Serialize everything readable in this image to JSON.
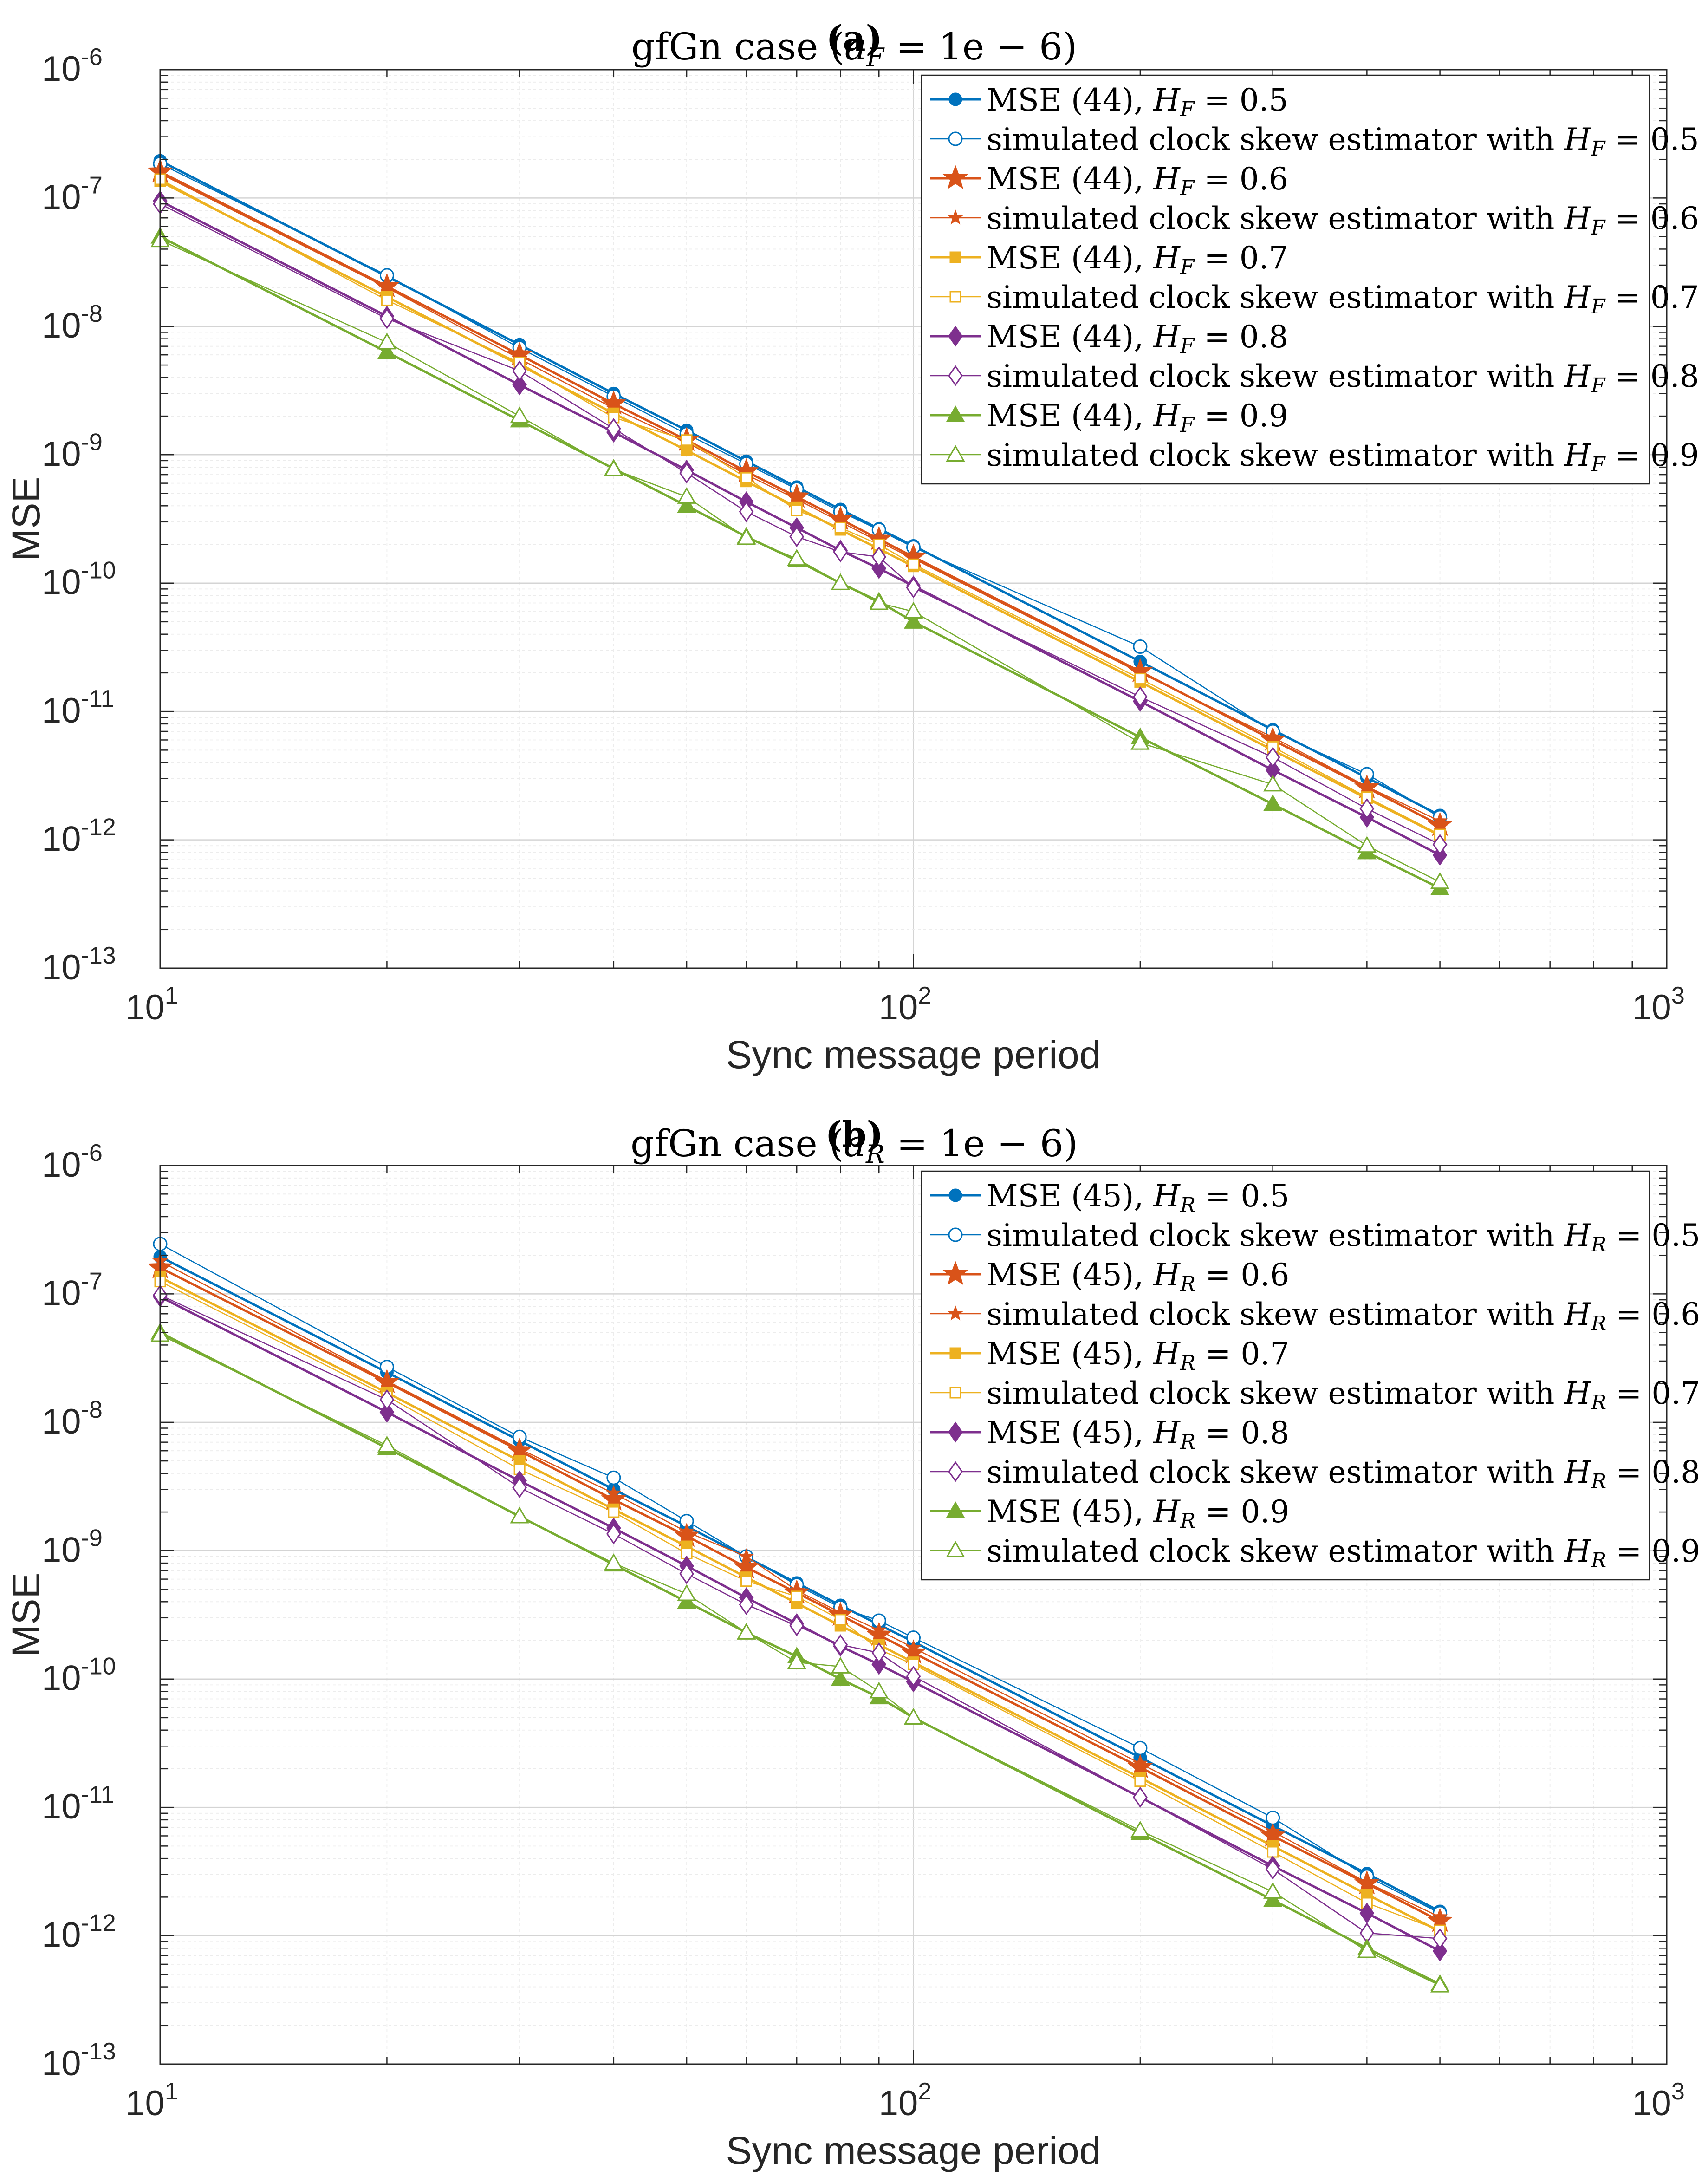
{
  "chart_data": [
    {
      "type": "line",
      "panel_label": "(a)",
      "title": {
        "prefix": "gfGn case (",
        "var": "a",
        "sub": "F",
        "suffix": " = 1e − 6)"
      },
      "xlabel": "Sync message period",
      "ylabel": "MSE",
      "xscale": "log",
      "yscale": "log",
      "xlim": [
        10,
        1000
      ],
      "ylim": [
        1e-13,
        1e-06
      ],
      "xticks": [
        {
          "base": "10",
          "exp": "1"
        },
        {
          "base": "10",
          "exp": "2"
        },
        {
          "base": "10",
          "exp": "3"
        }
      ],
      "yticks": [
        {
          "base": "10",
          "exp": "-13"
        },
        {
          "base": "10",
          "exp": "-12"
        },
        {
          "base": "10",
          "exp": "-11"
        },
        {
          "base": "10",
          "exp": "-10"
        },
        {
          "base": "10",
          "exp": "-9"
        },
        {
          "base": "10",
          "exp": "-8"
        },
        {
          "base": "10",
          "exp": "-7"
        },
        {
          "base": "10",
          "exp": "-6"
        }
      ],
      "grid": true,
      "legend_position": "top-right",
      "x": [
        10,
        20,
        30,
        40,
        50,
        60,
        70,
        80,
        90,
        100,
        200,
        300,
        400,
        500
      ],
      "series": [
        {
          "name_prefix": "MSE (44), ",
          "var": "H",
          "sub": "F",
          "value": " = 0.5",
          "color": "#0072BD",
          "marker": "circle-filled",
          "width": 5,
          "values": [
            1.95e-07,
            2.45e-08,
            7.2e-09,
            3e-09,
            1.55e-09,
            8.9e-10,
            5.6e-10,
            3.75e-10,
            2.65e-10,
            1.95e-10,
            2.45e-11,
            7.2e-12,
            3.05e-12,
            1.55e-12
          ]
        },
        {
          "name_prefix": "simulated clock skew estimator with ",
          "var": "H",
          "sub": "F",
          "value": " = 0.5",
          "color": "#0072BD",
          "marker": "circle-open",
          "width": 2.5,
          "values": [
            1.85e-07,
            2.5e-08,
            6.8e-09,
            2.85e-09,
            1.45e-09,
            8.5e-10,
            5.4e-10,
            3.6e-10,
            2.6e-10,
            1.9e-10,
            3.2e-11,
            7e-12,
            3.25e-12,
            1.5e-12
          ]
        },
        {
          "name_prefix": "MSE (44), ",
          "var": "H",
          "sub": "F",
          "value": " = 0.6",
          "color": "#D95319",
          "marker": "star-large",
          "width": 5,
          "values": [
            1.6e-07,
            2.05e-08,
            6e-09,
            2.5e-09,
            1.3e-09,
            7.4e-10,
            4.7e-10,
            3.15e-10,
            2.2e-10,
            1.6e-10,
            2.05e-11,
            6e-12,
            2.55e-12,
            1.3e-12
          ]
        },
        {
          "name_prefix": "simulated clock skew estimator with ",
          "var": "H",
          "sub": "F",
          "value": " = 0.6",
          "color": "#D95319",
          "marker": "star-small",
          "width": 2.5,
          "values": [
            1.55e-07,
            2e-08,
            5.6e-09,
            2.3e-09,
            1.25e-09,
            7e-10,
            4.5e-10,
            3e-10,
            2.1e-10,
            1.55e-10,
            2e-11,
            6.3e-12,
            2.6e-12,
            1.4e-12
          ]
        },
        {
          "name_prefix": "MSE (44), ",
          "var": "H",
          "sub": "F",
          "value": " = 0.7",
          "color": "#EDB120",
          "marker": "square-filled",
          "width": 5,
          "values": [
            1.35e-07,
            1.7e-08,
            5e-09,
            2.1e-09,
            1.08e-09,
            6.2e-10,
            3.9e-10,
            2.6e-10,
            1.85e-10,
            1.35e-10,
            1.7e-11,
            5e-12,
            2.1e-12,
            1.08e-12
          ]
        },
        {
          "name_prefix": "simulated clock skew estimator with ",
          "var": "H",
          "sub": "F",
          "value": " = 0.7",
          "color": "#EDB120",
          "marker": "square-open",
          "width": 2.5,
          "values": [
            1.4e-07,
            1.6e-08,
            5.2e-09,
            1.95e-09,
            1.3e-09,
            6.6e-10,
            3.7e-10,
            2.7e-10,
            2e-10,
            1.4e-10,
            1.8e-11,
            5.3e-12,
            2.15e-12,
            1.1e-12
          ]
        },
        {
          "name_prefix": "MSE (44), ",
          "var": "H",
          "sub": "F",
          "value": " = 0.8",
          "color": "#7E2F8E",
          "marker": "diamond-filled",
          "width": 5,
          "values": [
            9.5e-08,
            1.2e-08,
            3.5e-09,
            1.5e-09,
            7.6e-10,
            4.3e-10,
            2.7e-10,
            1.8e-10,
            1.3e-10,
            9.5e-11,
            1.2e-11,
            3.5e-12,
            1.5e-12,
            7.6e-13
          ]
        },
        {
          "name_prefix": "simulated clock skew estimator with ",
          "var": "H",
          "sub": "F",
          "value": " = 0.8",
          "color": "#7E2F8E",
          "marker": "diamond-open",
          "width": 2.5,
          "values": [
            9e-08,
            1.15e-08,
            4.5e-09,
            1.6e-09,
            7.2e-10,
            3.6e-10,
            2.3e-10,
            1.75e-10,
            1.6e-10,
            9.2e-11,
            1.3e-11,
            4.4e-12,
            1.75e-12,
            9.2e-13
          ]
        },
        {
          "name_prefix": "MSE (44), ",
          "var": "H",
          "sub": "F",
          "value": " = 0.9",
          "color": "#77AC30",
          "marker": "triangle-filled",
          "width": 5,
          "values": [
            5e-08,
            6.3e-09,
            1.85e-09,
            7.8e-10,
            4e-10,
            2.3e-10,
            1.5e-10,
            1e-10,
            7.2e-11,
            5e-11,
            6.3e-12,
            1.9e-12,
            8e-13,
            4.2e-13
          ]
        },
        {
          "name_prefix": "simulated clock skew estimator with ",
          "var": "H",
          "sub": "F",
          "value": " = 0.9",
          "color": "#77AC30",
          "marker": "triangle-open",
          "width": 2.5,
          "values": [
            4.7e-08,
            7.5e-09,
            2e-09,
            7.7e-10,
            4.7e-10,
            2.25e-10,
            1.55e-10,
            1e-10,
            7e-11,
            6e-11,
            5.7e-12,
            2.7e-12,
            9e-13,
            4.7e-13
          ]
        }
      ]
    },
    {
      "type": "line",
      "panel_label": "(b)",
      "title": {
        "prefix": "gfGn case (",
        "var": "a",
        "sub": "R",
        "suffix": " = 1e − 6)"
      },
      "xlabel": "Sync message period",
      "ylabel": "MSE",
      "xscale": "log",
      "yscale": "log",
      "xlim": [
        10,
        1000
      ],
      "ylim": [
        1e-13,
        1e-06
      ],
      "xticks": [
        {
          "base": "10",
          "exp": "1"
        },
        {
          "base": "10",
          "exp": "2"
        },
        {
          "base": "10",
          "exp": "3"
        }
      ],
      "yticks": [
        {
          "base": "10",
          "exp": "-13"
        },
        {
          "base": "10",
          "exp": "-12"
        },
        {
          "base": "10",
          "exp": "-11"
        },
        {
          "base": "10",
          "exp": "-10"
        },
        {
          "base": "10",
          "exp": "-9"
        },
        {
          "base": "10",
          "exp": "-8"
        },
        {
          "base": "10",
          "exp": "-7"
        },
        {
          "base": "10",
          "exp": "-6"
        }
      ],
      "grid": true,
      "legend_position": "top-right",
      "x": [
        10,
        20,
        30,
        40,
        50,
        60,
        70,
        80,
        90,
        100,
        200,
        300,
        400,
        500
      ],
      "series": [
        {
          "name_prefix": "MSE (45), ",
          "var": "H",
          "sub": "R",
          "value": " = 0.5",
          "color": "#0072BD",
          "marker": "circle-filled",
          "width": 5,
          "values": [
            1.95e-07,
            2.45e-08,
            7.2e-09,
            3e-09,
            1.55e-09,
            8.9e-10,
            5.6e-10,
            3.75e-10,
            2.65e-10,
            1.95e-10,
            2.45e-11,
            7.2e-12,
            3.05e-12,
            1.55e-12
          ]
        },
        {
          "name_prefix": "simulated clock skew estimator with ",
          "var": "H",
          "sub": "R",
          "value": " = 0.5",
          "color": "#0072BD",
          "marker": "circle-open",
          "width": 2.5,
          "values": [
            2.45e-07,
            2.7e-08,
            7.7e-09,
            3.7e-09,
            1.7e-09,
            9e-10,
            5.4e-10,
            3.6e-10,
            2.85e-10,
            2.1e-10,
            2.9e-11,
            8.3e-12,
            2.9e-12,
            1.5e-12
          ]
        },
        {
          "name_prefix": "MSE (45), ",
          "var": "H",
          "sub": "R",
          "value": " = 0.6",
          "color": "#D95319",
          "marker": "star-large",
          "width": 5,
          "values": [
            1.6e-07,
            2.05e-08,
            6e-09,
            2.5e-09,
            1.3e-09,
            7.4e-10,
            4.7e-10,
            3.15e-10,
            2.2e-10,
            1.6e-10,
            2.05e-11,
            6e-12,
            2.55e-12,
            1.3e-12
          ]
        },
        {
          "name_prefix": "simulated clock skew estimator with ",
          "var": "H",
          "sub": "R",
          "value": " = 0.6",
          "color": "#D95319",
          "marker": "star-small",
          "width": 2.5,
          "values": [
            1.8e-07,
            2.1e-08,
            6.2e-09,
            2.8e-09,
            1.4e-09,
            9e-10,
            4.9e-10,
            3.3e-10,
            2.4e-10,
            1.75e-10,
            2.2e-11,
            6.5e-12,
            2.6e-12,
            1.4e-12
          ]
        },
        {
          "name_prefix": "MSE (45), ",
          "var": "H",
          "sub": "R",
          "value": " = 0.7",
          "color": "#EDB120",
          "marker": "square-filled",
          "width": 5,
          "values": [
            1.35e-07,
            1.7e-08,
            5e-09,
            2.1e-09,
            1.08e-09,
            6.2e-10,
            3.9e-10,
            2.6e-10,
            1.85e-10,
            1.35e-10,
            1.7e-11,
            5e-12,
            2.1e-12,
            1.08e-12
          ]
        },
        {
          "name_prefix": "simulated clock skew estimator with ",
          "var": "H",
          "sub": "R",
          "value": " = 0.7",
          "color": "#EDB120",
          "marker": "square-open",
          "width": 2.5,
          "values": [
            1.25e-07,
            1.6e-08,
            4.3e-09,
            2e-09,
            9.5e-10,
            5.8e-10,
            4.4e-10,
            2.9e-10,
            1.7e-10,
            1.3e-10,
            1.6e-11,
            4.5e-12,
            1.8e-12,
            1.1e-12
          ]
        },
        {
          "name_prefix": "MSE (45), ",
          "var": "H",
          "sub": "R",
          "value": " = 0.8",
          "color": "#7E2F8E",
          "marker": "diamond-filled",
          "width": 5,
          "values": [
            9.5e-08,
            1.2e-08,
            3.5e-09,
            1.5e-09,
            7.6e-10,
            4.3e-10,
            2.7e-10,
            1.8e-10,
            1.3e-10,
            9.5e-11,
            1.2e-11,
            3.5e-12,
            1.5e-12,
            7.6e-13
          ]
        },
        {
          "name_prefix": "simulated clock skew estimator with ",
          "var": "H",
          "sub": "R",
          "value": " = 0.8",
          "color": "#7E2F8E",
          "marker": "diamond-open",
          "width": 2.5,
          "values": [
            9.8e-08,
            1.5e-08,
            3.1e-09,
            1.35e-09,
            6.6e-10,
            3.8e-10,
            2.6e-10,
            1.85e-10,
            1.6e-10,
            1.05e-10,
            1.2e-11,
            3.3e-12,
            1.05e-12,
            9.5e-13
          ]
        },
        {
          "name_prefix": "MSE (45), ",
          "var": "H",
          "sub": "R",
          "value": " = 0.9",
          "color": "#77AC30",
          "marker": "triangle-filled",
          "width": 5,
          "values": [
            5e-08,
            6.3e-09,
            1.85e-09,
            7.8e-10,
            4e-10,
            2.3e-10,
            1.5e-10,
            1e-10,
            7.2e-11,
            5e-11,
            6.3e-12,
            1.9e-12,
            8e-13,
            4.2e-13
          ]
        },
        {
          "name_prefix": "simulated clock skew estimator with ",
          "var": "H",
          "sub": "R",
          "value": " = 0.9",
          "color": "#77AC30",
          "marker": "triangle-open",
          "width": 2.5,
          "values": [
            4.8e-08,
            6.6e-09,
            1.85e-09,
            8e-10,
            4.6e-10,
            2.3e-10,
            1.35e-10,
            1.25e-10,
            8e-11,
            5e-11,
            6.6e-12,
            2.2e-12,
            7.6e-13,
            4.1e-13
          ]
        }
      ]
    }
  ]
}
